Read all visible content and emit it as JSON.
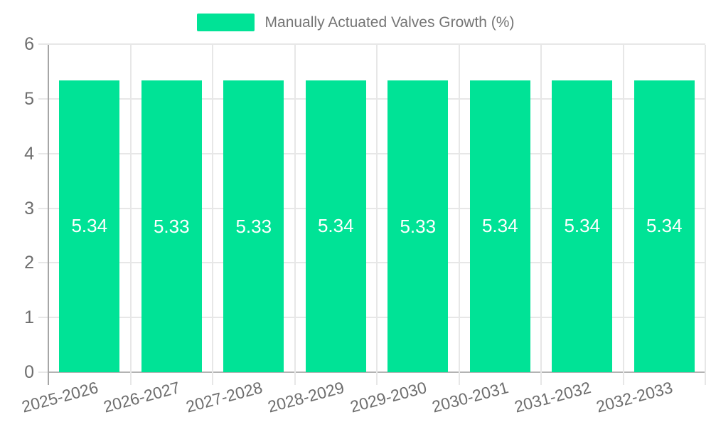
{
  "chart_data": {
    "type": "bar",
    "title": "Manually Actuated Valves Growth (%)",
    "categories": [
      "2025-2026",
      "2026-2027",
      "2027-2028",
      "2028-2029",
      "2029-2030",
      "2030-2031",
      "2031-2032",
      "2032-2033"
    ],
    "series": [
      {
        "name": "Manually Actuated Valves Growth (%)",
        "values": [
          5.34,
          5.33,
          5.33,
          5.34,
          5.33,
          5.34,
          5.34,
          5.34
        ]
      }
    ],
    "value_labels": [
      "5.34",
      "5.33",
      "5.33",
      "5.34",
      "5.33",
      "5.34",
      "5.34",
      "5.34"
    ],
    "xlabel": "",
    "ylabel": "",
    "ylim": [
      0,
      6
    ],
    "yticks": [
      0,
      1,
      2,
      3,
      4,
      5,
      6
    ],
    "grid": true,
    "legend_position": "top",
    "colors": {
      "bar": "#00E396",
      "value_label": "#ffffff",
      "axis_text": "#6e6e6e",
      "legend_text": "#757575",
      "gridline": "#e7e7e7",
      "y_axis_line": "#a6a6a6",
      "x_axis_line": "#b3b3b3"
    }
  },
  "legend": {
    "label": "Manually Actuated Valves Growth (%)"
  }
}
